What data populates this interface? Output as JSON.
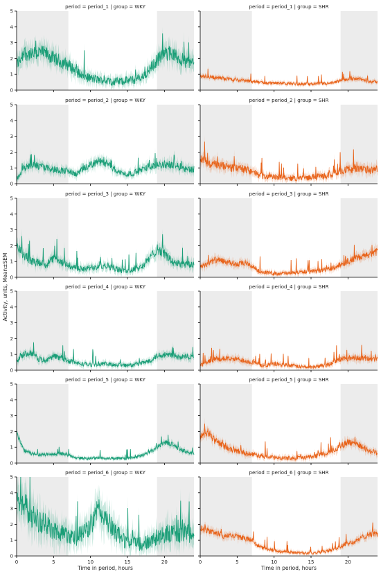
{
  "figure": {
    "ylabel": "Activity, units, Mean±SEM",
    "xlabel": "Time in period, hours"
  },
  "chart_data": [
    {
      "type": "line",
      "title": "period = period_1 | group = WKY",
      "period": "period_1",
      "group": "WKY",
      "color": "#1a9e77",
      "xlim": [
        0,
        24
      ],
      "ylim": [
        0,
        5
      ],
      "xticks": [
        0,
        5,
        10,
        15,
        20
      ],
      "yticks": [
        0,
        1,
        2,
        3,
        4,
        5
      ],
      "shaded_intervals": [
        [
          0,
          7
        ],
        [
          19,
          24
        ]
      ],
      "series": [
        {
          "x": [
            0,
            1,
            2,
            3,
            4,
            5,
            6,
            7,
            8,
            9,
            10,
            11,
            12,
            13,
            14,
            15,
            16,
            17,
            18,
            19,
            20,
            21,
            22,
            23,
            24
          ],
          "y": [
            1.6,
            2.4,
            2.2,
            2.4,
            2.3,
            2.0,
            1.8,
            1.6,
            1.2,
            0.9,
            0.75,
            0.65,
            0.6,
            0.55,
            0.55,
            0.6,
            0.65,
            0.8,
            1.3,
            1.9,
            2.3,
            2.3,
            2.0,
            1.8,
            1.7
          ],
          "noise": 0.5
        }
      ]
    },
    {
      "type": "line",
      "title": "period = period_1 | group = SHR",
      "period": "period_1",
      "group": "SHR",
      "color": "#e8631a",
      "xlim": [
        0,
        24
      ],
      "ylim": [
        0,
        5
      ],
      "xticks": [
        0,
        5,
        10,
        15,
        20
      ],
      "yticks": [
        0,
        1,
        2,
        3,
        4,
        5
      ],
      "shaded_intervals": [
        [
          0,
          7
        ],
        [
          19,
          24
        ]
      ],
      "series": [
        {
          "x": [
            0,
            1,
            2,
            3,
            4,
            5,
            6,
            7,
            8,
            9,
            10,
            11,
            12,
            13,
            14,
            15,
            16,
            17,
            18,
            19,
            20,
            21,
            22,
            23,
            24
          ],
          "y": [
            0.9,
            0.85,
            0.8,
            0.75,
            0.7,
            0.65,
            0.6,
            0.55,
            0.5,
            0.45,
            0.45,
            0.42,
            0.42,
            0.4,
            0.38,
            0.38,
            0.4,
            0.4,
            0.45,
            0.6,
            0.7,
            0.75,
            0.65,
            0.55,
            0.5
          ],
          "noise": 0.2
        }
      ]
    },
    {
      "type": "line",
      "title": "period = period_2 | group = WKY",
      "period": "period_2",
      "group": "WKY",
      "color": "#1a9e77",
      "xlim": [
        0,
        24
      ],
      "ylim": [
        0,
        5
      ],
      "xticks": [
        0,
        5,
        10,
        15,
        20
      ],
      "yticks": [
        0,
        1,
        2,
        3,
        4,
        5
      ],
      "shaded_intervals": [
        [
          0,
          7
        ],
        [
          19,
          24
        ]
      ],
      "series": [
        {
          "x": [
            0,
            1,
            2,
            3,
            4,
            5,
            6,
            7,
            8,
            9,
            10,
            11,
            12,
            13,
            14,
            15,
            16,
            17,
            18,
            19,
            20,
            21,
            22,
            23,
            24
          ],
          "y": [
            0.3,
            1.0,
            1.2,
            1.1,
            1.0,
            0.9,
            0.85,
            0.8,
            0.6,
            0.9,
            1.2,
            1.4,
            1.3,
            1.0,
            0.7,
            0.6,
            0.7,
            0.9,
            1.1,
            1.2,
            1.2,
            1.2,
            1.1,
            0.95,
            0.9
          ],
          "noise": 0.35
        }
      ]
    },
    {
      "type": "line",
      "title": "period = period_2 | group = SHR",
      "period": "period_2",
      "group": "SHR",
      "color": "#e8631a",
      "xlim": [
        0,
        24
      ],
      "ylim": [
        0,
        5
      ],
      "xticks": [
        0,
        5,
        10,
        15,
        20
      ],
      "yticks": [
        0,
        1,
        2,
        3,
        4,
        5
      ],
      "shaded_intervals": [
        [
          0,
          7
        ],
        [
          19,
          24
        ]
      ],
      "series": [
        {
          "x": [
            0,
            1,
            2,
            3,
            4,
            5,
            6,
            7,
            8,
            9,
            10,
            11,
            12,
            13,
            14,
            15,
            16,
            17,
            18,
            19,
            20,
            21,
            22,
            23,
            24
          ],
          "y": [
            1.6,
            1.3,
            1.2,
            1.1,
            1.0,
            1.0,
            0.9,
            0.8,
            0.5,
            0.45,
            0.4,
            0.4,
            0.35,
            0.35,
            0.35,
            0.4,
            0.45,
            0.5,
            0.6,
            0.85,
            0.9,
            0.95,
            0.9,
            0.85,
            0.9
          ],
          "noise": 0.4
        }
      ]
    },
    {
      "type": "line",
      "title": "period = period_3 | group = WKY",
      "period": "period_3",
      "group": "WKY",
      "color": "#1a9e77",
      "xlim": [
        0,
        24
      ],
      "ylim": [
        0,
        5
      ],
      "xticks": [
        0,
        5,
        10,
        15,
        20
      ],
      "yticks": [
        0,
        1,
        2,
        3,
        4,
        5
      ],
      "shaded_intervals": [
        [
          0,
          7
        ],
        [
          19,
          24
        ]
      ],
      "series": [
        {
          "x": [
            0,
            1,
            2,
            3,
            4,
            5,
            6,
            7,
            8,
            9,
            10,
            11,
            12,
            13,
            14,
            15,
            16,
            17,
            18,
            19,
            20,
            21,
            22,
            23,
            24
          ],
          "y": [
            2.0,
            1.4,
            1.0,
            0.9,
            0.8,
            1.2,
            0.9,
            0.8,
            0.6,
            0.5,
            0.6,
            0.7,
            0.8,
            0.6,
            0.45,
            0.4,
            0.5,
            0.7,
            1.2,
            1.8,
            1.5,
            1.0,
            0.85,
            0.8,
            0.8
          ],
          "noise": 0.4
        }
      ]
    },
    {
      "type": "line",
      "title": "period = period_3 | group = SHR",
      "period": "period_3",
      "group": "SHR",
      "color": "#e8631a",
      "xlim": [
        0,
        24
      ],
      "ylim": [
        0,
        5
      ],
      "xticks": [
        0,
        5,
        10,
        15,
        20
      ],
      "yticks": [
        0,
        1,
        2,
        3,
        4,
        5
      ],
      "shaded_intervals": [
        [
          0,
          7
        ],
        [
          19,
          24
        ]
      ],
      "series": [
        {
          "x": [
            0,
            1,
            2,
            3,
            4,
            5,
            6,
            7,
            8,
            9,
            10,
            11,
            12,
            13,
            14,
            15,
            16,
            17,
            18,
            19,
            20,
            21,
            22,
            23,
            24
          ],
          "y": [
            0.7,
            0.85,
            1.1,
            1.0,
            0.9,
            0.8,
            0.9,
            0.7,
            0.4,
            0.3,
            0.25,
            0.25,
            0.25,
            0.3,
            0.35,
            0.35,
            0.4,
            0.5,
            0.6,
            0.8,
            1.0,
            1.2,
            1.3,
            1.5,
            1.6
          ],
          "noise": 0.3
        }
      ]
    },
    {
      "type": "line",
      "title": "period = period_4 | group = WKY",
      "period": "period_4",
      "group": "WKY",
      "color": "#1a9e77",
      "xlim": [
        0,
        24
      ],
      "ylim": [
        0,
        5
      ],
      "xticks": [
        0,
        5,
        10,
        15,
        20
      ],
      "yticks": [
        0,
        1,
        2,
        3,
        4,
        5
      ],
      "shaded_intervals": [
        [
          0,
          7
        ],
        [
          19,
          24
        ]
      ],
      "series": [
        {
          "x": [
            0,
            1,
            2,
            3,
            4,
            5,
            6,
            7,
            8,
            9,
            10,
            11,
            12,
            13,
            14,
            15,
            16,
            17,
            18,
            19,
            20,
            21,
            22,
            23,
            24
          ],
          "y": [
            0.6,
            1.0,
            1.1,
            0.7,
            0.6,
            0.9,
            0.8,
            0.6,
            0.45,
            0.4,
            0.35,
            0.4,
            0.4,
            0.35,
            0.35,
            0.3,
            0.35,
            0.45,
            0.6,
            0.9,
            1.0,
            0.95,
            0.8,
            0.85,
            0.9
          ],
          "noise": 0.3
        }
      ]
    },
    {
      "type": "line",
      "title": "period = period_4 | group = SHR",
      "period": "period_4",
      "group": "SHR",
      "color": "#e8631a",
      "xlim": [
        0,
        24
      ],
      "ylim": [
        0,
        5
      ],
      "xticks": [
        0,
        5,
        10,
        15,
        20
      ],
      "yticks": [
        0,
        1,
        2,
        3,
        4,
        5
      ],
      "shaded_intervals": [
        [
          0,
          7
        ],
        [
          19,
          24
        ]
      ],
      "series": [
        {
          "x": [
            0,
            1,
            2,
            3,
            4,
            5,
            6,
            7,
            8,
            9,
            10,
            11,
            12,
            13,
            14,
            15,
            16,
            17,
            18,
            19,
            20,
            21,
            22,
            23,
            24
          ],
          "y": [
            0.3,
            0.5,
            0.7,
            0.75,
            0.7,
            0.7,
            0.6,
            0.5,
            0.35,
            0.3,
            0.4,
            0.35,
            0.3,
            0.25,
            0.2,
            0.2,
            0.25,
            0.3,
            0.5,
            0.7,
            0.75,
            0.8,
            0.75,
            0.7,
            0.7
          ],
          "noise": 0.3
        }
      ]
    },
    {
      "type": "line",
      "title": "period = period_5 | group = WKY",
      "period": "period_5",
      "group": "WKY",
      "color": "#1a9e77",
      "xlim": [
        0,
        24
      ],
      "ylim": [
        0,
        5
      ],
      "xticks": [
        0,
        5,
        10,
        15,
        20
      ],
      "yticks": [
        0,
        1,
        2,
        3,
        4,
        5
      ],
      "shaded_intervals": [
        [
          0,
          7
        ],
        [
          19,
          24
        ]
      ],
      "series": [
        {
          "x": [
            0,
            1,
            2,
            3,
            4,
            5,
            6,
            7,
            8,
            9,
            10,
            11,
            12,
            13,
            14,
            15,
            16,
            17,
            18,
            19,
            20,
            21,
            22,
            23,
            24
          ],
          "y": [
            1.9,
            0.8,
            0.6,
            0.55,
            0.55,
            0.55,
            0.6,
            0.5,
            0.35,
            0.3,
            0.3,
            0.35,
            0.3,
            0.3,
            0.3,
            0.3,
            0.35,
            0.5,
            0.7,
            1.0,
            1.3,
            1.2,
            0.9,
            0.7,
            0.6
          ],
          "noise": 0.2
        }
      ]
    },
    {
      "type": "line",
      "title": "period = period_5 | group = SHR",
      "period": "period_5",
      "group": "SHR",
      "color": "#e8631a",
      "xlim": [
        0,
        24
      ],
      "ylim": [
        0,
        5
      ],
      "xticks": [
        0,
        5,
        10,
        15,
        20
      ],
      "yticks": [
        0,
        1,
        2,
        3,
        4,
        5
      ],
      "shaded_intervals": [
        [
          0,
          7
        ],
        [
          19,
          24
        ]
      ],
      "series": [
        {
          "x": [
            0,
            1,
            2,
            3,
            4,
            5,
            6,
            7,
            8,
            9,
            10,
            11,
            12,
            13,
            14,
            15,
            16,
            17,
            18,
            19,
            20,
            21,
            22,
            23,
            24
          ],
          "y": [
            1.6,
            2.0,
            1.4,
            1.1,
            0.9,
            0.75,
            0.65,
            0.55,
            0.5,
            0.4,
            0.35,
            0.3,
            0.3,
            0.3,
            0.35,
            0.4,
            0.5,
            0.6,
            0.8,
            1.1,
            1.3,
            1.3,
            1.0,
            0.75,
            0.65
          ],
          "noise": 0.3
        }
      ]
    },
    {
      "type": "line",
      "title": "period = period_6 | group = WKY",
      "period": "period_6",
      "group": "WKY",
      "color": "#1a9e77",
      "xlim": [
        0,
        24
      ],
      "ylim": [
        0,
        5
      ],
      "xticks": [
        0,
        5,
        10,
        15,
        20
      ],
      "yticks": [
        0,
        1,
        2,
        3,
        4,
        5
      ],
      "shaded_intervals": [
        [
          0,
          7
        ],
        [
          19,
          24
        ]
      ],
      "series": [
        {
          "x": [
            0,
            1,
            2,
            3,
            4,
            5,
            6,
            7,
            8,
            9,
            10,
            11,
            12,
            13,
            14,
            15,
            16,
            17,
            18,
            19,
            20,
            21,
            22,
            23,
            24
          ],
          "y": [
            4.0,
            3.2,
            2.6,
            2.2,
            1.9,
            1.6,
            1.5,
            1.4,
            1.2,
            1.4,
            2.0,
            2.8,
            2.5,
            1.7,
            1.2,
            0.9,
            0.8,
            0.7,
            0.9,
            1.2,
            1.4,
            1.4,
            1.4,
            1.4,
            1.5
          ],
          "noise": 0.8
        }
      ]
    },
    {
      "type": "line",
      "title": "period = period_6 | group = SHR",
      "period": "period_6",
      "group": "SHR",
      "color": "#e8631a",
      "xlim": [
        0,
        24
      ],
      "ylim": [
        0,
        5
      ],
      "xticks": [
        0,
        5,
        10,
        15,
        20
      ],
      "yticks": [
        0,
        1,
        2,
        3,
        4,
        5
      ],
      "shaded_intervals": [
        [
          0,
          7
        ],
        [
          19,
          24
        ]
      ],
      "series": [
        {
          "x": [
            0,
            1,
            2,
            3,
            4,
            5,
            6,
            7,
            8,
            9,
            10,
            11,
            12,
            13,
            14,
            15,
            16,
            17,
            18,
            19,
            20,
            21,
            22,
            23,
            24
          ],
          "y": [
            1.8,
            1.6,
            1.5,
            1.3,
            1.3,
            1.2,
            1.1,
            1.0,
            0.6,
            0.4,
            0.35,
            0.3,
            0.25,
            0.2,
            0.2,
            0.2,
            0.25,
            0.3,
            0.4,
            0.6,
            0.8,
            0.9,
            1.2,
            1.4,
            1.4
          ],
          "noise": 0.25
        }
      ]
    }
  ]
}
